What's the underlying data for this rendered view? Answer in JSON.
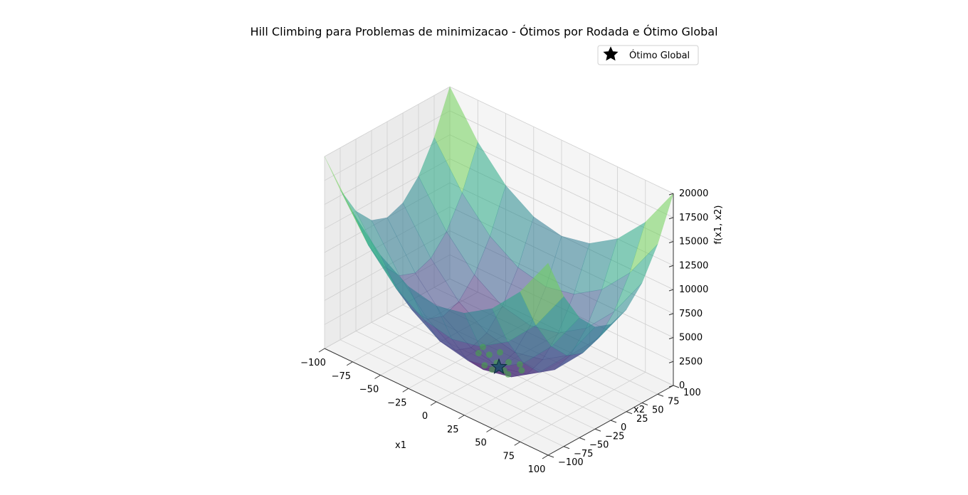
{
  "chart_data": {
    "type": "surface3d",
    "title": "Hill Climbing para Problemas de minimizacao - Ótimos por Rodada e Ótimo Global",
    "xlabel": "x1",
    "ylabel": "x2",
    "zlabel": "f(x1, x2)",
    "x_ticks": [
      "−100",
      "−75",
      "−50",
      "−25",
      "0",
      "25",
      "50",
      "75",
      "100"
    ],
    "y_ticks": [
      "−100",
      "−75",
      "−50",
      "−25",
      "0",
      "25",
      "50",
      "75",
      "100"
    ],
    "z_ticks": [
      "0",
      "2500",
      "5000",
      "7500",
      "10000",
      "12500",
      "15000",
      "17500",
      "20000"
    ],
    "xlim": [
      -100,
      100
    ],
    "ylim": [
      -100,
      100
    ],
    "zlim": [
      0,
      20000
    ],
    "surface": {
      "function": "x1^2 + x2^2",
      "grid_steps": 8,
      "colormap": "viridis",
      "alpha": 0.55
    },
    "round_optima": {
      "color": "#44aa44",
      "points": [
        [
          -12,
          6,
          400
        ],
        [
          -5,
          -14,
          400
        ],
        [
          3,
          10,
          300
        ],
        [
          8,
          -6,
          300
        ],
        [
          -16,
          -4,
          700
        ],
        [
          12,
          12,
          500
        ],
        [
          -8,
          16,
          500
        ],
        [
          15,
          -12,
          500
        ],
        [
          -20,
          10,
          600
        ],
        [
          4,
          -18,
          600
        ],
        [
          18,
          4,
          500
        ],
        [
          -3,
          2,
          200
        ]
      ]
    },
    "global_optimum": {
      "label": "Ótimo Global",
      "point": [
        0,
        0,
        0
      ],
      "color": "#000000"
    },
    "legend_position": "upper-right",
    "grid": true
  }
}
